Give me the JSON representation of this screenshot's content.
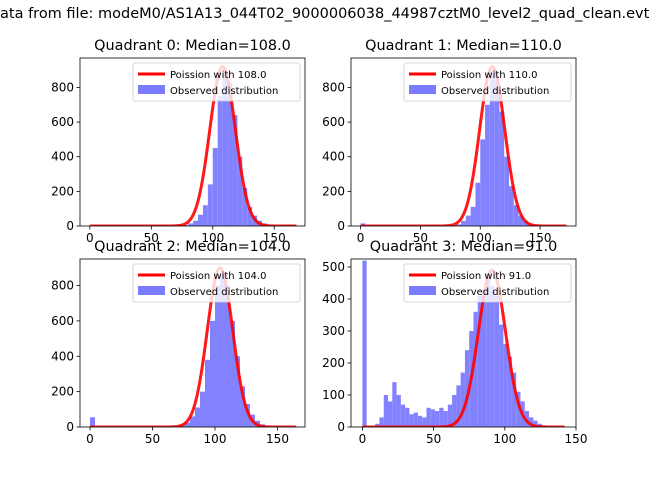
{
  "figure_title": "ata from file: modeM0/AS1A13_044T02_9000006038_44987cztM0_level2_quad_clean.evt",
  "colors": {
    "histogram": "#7b7bff",
    "poisson": "#ff0000"
  },
  "chart_data": [
    {
      "type": "bar",
      "title": "Quadrant 0: Median=108.0",
      "legend": [
        "Poission with 108.0",
        "Observed distribution"
      ],
      "legend_position": "top-right",
      "xlim": [
        -8,
        175
      ],
      "ylim": [
        0,
        970
      ],
      "xticks": [
        0,
        50,
        100,
        150
      ],
      "yticks": [
        0,
        200,
        400,
        600,
        800
      ],
      "bin_width": 4,
      "bins": [
        [
          76,
          5
        ],
        [
          80,
          15
        ],
        [
          84,
          30
        ],
        [
          88,
          65
        ],
        [
          92,
          120
        ],
        [
          96,
          240
        ],
        [
          100,
          450
        ],
        [
          104,
          750
        ],
        [
          108,
          880
        ],
        [
          112,
          830
        ],
        [
          116,
          640
        ],
        [
          120,
          400
        ],
        [
          124,
          220
        ],
        [
          128,
          110
        ],
        [
          132,
          60
        ],
        [
          136,
          30
        ],
        [
          140,
          15
        ],
        [
          144,
          5
        ]
      ],
      "poisson_mean": 108.0,
      "poisson_peak": 920,
      "poisson_x_range": [
        0,
        168
      ]
    },
    {
      "type": "bar",
      "title": "Quadrant 1: Median=110.0",
      "legend": [
        "Poission with 110.0",
        "Observed distribution"
      ],
      "legend_position": "top-right",
      "xlim": [
        -8,
        180
      ],
      "ylim": [
        0,
        970
      ],
      "xticks": [
        0,
        50,
        100,
        150
      ],
      "yticks": [
        0,
        200,
        400,
        600,
        800
      ],
      "bin_width": 4,
      "bins": [
        [
          0,
          15
        ],
        [
          76,
          5
        ],
        [
          80,
          10
        ],
        [
          84,
          30
        ],
        [
          88,
          60
        ],
        [
          92,
          110
        ],
        [
          96,
          250
        ],
        [
          100,
          500
        ],
        [
          104,
          700
        ],
        [
          108,
          900
        ],
        [
          112,
          850
        ],
        [
          116,
          660
        ],
        [
          120,
          400
        ],
        [
          124,
          230
        ],
        [
          128,
          120
        ],
        [
          132,
          60
        ],
        [
          136,
          30
        ],
        [
          140,
          15
        ],
        [
          144,
          5
        ]
      ],
      "poisson_mean": 110.0,
      "poisson_peak": 920,
      "poisson_x_range": [
        0,
        172
      ]
    },
    {
      "type": "bar",
      "title": "Quadrant 2: Median=104.0",
      "legend": [
        "Poission with 104.0",
        "Observed distribution"
      ],
      "legend_position": "top-right",
      "xlim": [
        -8,
        172
      ],
      "ylim": [
        0,
        950
      ],
      "xticks": [
        0,
        50,
        100,
        150
      ],
      "yticks": [
        0,
        200,
        400,
        600,
        800
      ],
      "bin_width": 4,
      "bins": [
        [
          0,
          55
        ],
        [
          72,
          10
        ],
        [
          76,
          25
        ],
        [
          80,
          60
        ],
        [
          84,
          110
        ],
        [
          88,
          200
        ],
        [
          92,
          380
        ],
        [
          96,
          600
        ],
        [
          100,
          800
        ],
        [
          104,
          870
        ],
        [
          108,
          800
        ],
        [
          112,
          600
        ],
        [
          116,
          400
        ],
        [
          120,
          230
        ],
        [
          124,
          130
        ],
        [
          128,
          70
        ],
        [
          132,
          35
        ],
        [
          136,
          15
        ],
        [
          140,
          5
        ]
      ],
      "poisson_mean": 104.0,
      "poisson_peak": 900,
      "poisson_x_range": [
        0,
        165
      ]
    },
    {
      "type": "bar",
      "title": "Quadrant 3: Median=91.0",
      "legend": [
        "Poission with 91.0",
        "Observed distribution"
      ],
      "legend_position": "top-right",
      "xlim": [
        -8,
        150
      ],
      "ylim": [
        0,
        525
      ],
      "xticks": [
        0,
        50,
        100,
        150
      ],
      "yticks": [
        0,
        100,
        200,
        300,
        400,
        500
      ],
      "bin_width": 3,
      "bins": [
        [
          0,
          520
        ],
        [
          9,
          10
        ],
        [
          12,
          30
        ],
        [
          15,
          100
        ],
        [
          18,
          80
        ],
        [
          21,
          140
        ],
        [
          24,
          100
        ],
        [
          27,
          70
        ],
        [
          30,
          60
        ],
        [
          33,
          40
        ],
        [
          36,
          45
        ],
        [
          39,
          35
        ],
        [
          42,
          30
        ],
        [
          45,
          60
        ],
        [
          48,
          55
        ],
        [
          51,
          50
        ],
        [
          54,
          60
        ],
        [
          57,
          50
        ],
        [
          60,
          70
        ],
        [
          63,
          100
        ],
        [
          66,
          130
        ],
        [
          69,
          170
        ],
        [
          72,
          240
        ],
        [
          75,
          300
        ],
        [
          78,
          360
        ],
        [
          81,
          410
        ],
        [
          84,
          430
        ],
        [
          87,
          480
        ],
        [
          90,
          440
        ],
        [
          93,
          410
        ],
        [
          96,
          320
        ],
        [
          99,
          260
        ],
        [
          102,
          220
        ],
        [
          105,
          170
        ],
        [
          108,
          110
        ],
        [
          111,
          80
        ],
        [
          114,
          50
        ],
        [
          117,
          30
        ],
        [
          120,
          20
        ],
        [
          123,
          10
        ],
        [
          126,
          5
        ]
      ],
      "poisson_mean": 91.0,
      "poisson_peak": 490,
      "poisson_x_range": [
        0,
        142
      ]
    }
  ]
}
